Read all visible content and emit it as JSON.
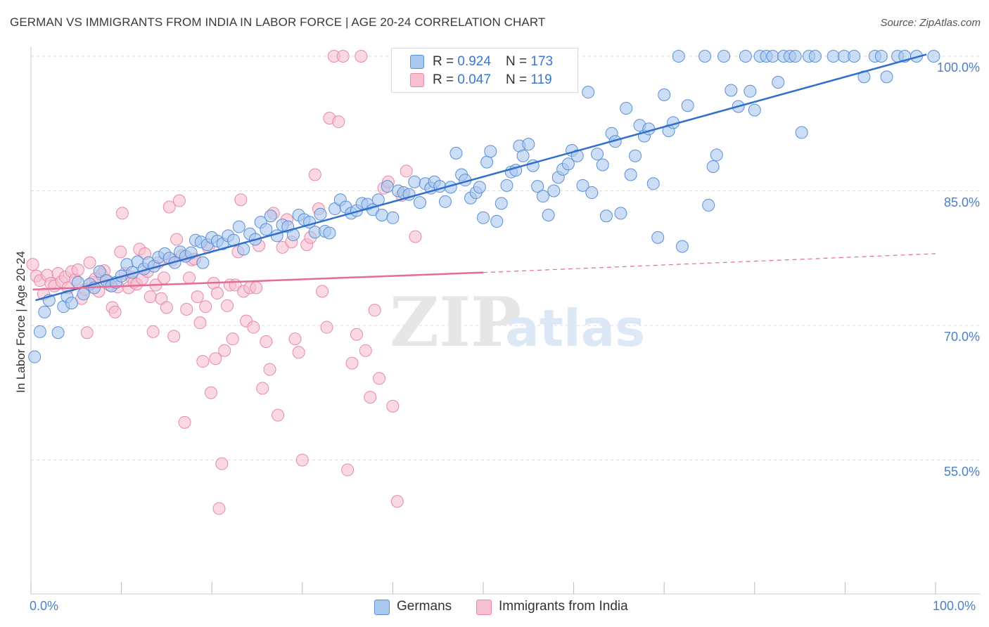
{
  "title": "GERMAN VS IMMIGRANTS FROM INDIA IN LABOR FORCE | AGE 20-24 CORRELATION CHART",
  "source": "Source: ZipAtlas.com",
  "watermark": {
    "zip": "ZIP",
    "atlas": "atlas"
  },
  "colors": {
    "blue_fill": "#a9c8f0",
    "blue_stroke": "#5b8fd6",
    "blue_line": "#2f6fce",
    "pink_fill": "#f7bfd0",
    "pink_stroke": "#e58aa8",
    "pink_line": "#e46c97",
    "axis_text": "#4a7fcb",
    "grid": "#dddddd"
  },
  "legend": {
    "german": {
      "r_label": "R = ",
      "r_value": "0.924",
      "n_label": "N = ",
      "n_value": "173"
    },
    "india": {
      "r_label": "R = ",
      "r_value": "0.047",
      "n_label": "N = ",
      "n_value": "119"
    }
  },
  "bottom_legend": {
    "german": "Germans",
    "india": "Immigrants from India"
  },
  "chart_data": {
    "type": "scatter",
    "title": "GERMAN VS IMMIGRANTS FROM INDIA IN LABOR FORCE | AGE 20-24 CORRELATION CHART",
    "xlabel": "",
    "ylabel": "In Labor Force | Age 20-24",
    "xlim": [
      0,
      100
    ],
    "ylim": [
      40,
      102
    ],
    "x_tick_labels": [
      "0.0%",
      "100.0%"
    ],
    "y_ticks": [
      55,
      70,
      85,
      100
    ],
    "y_tick_labels": [
      "55.0%",
      "70.0%",
      "85.0%",
      "100.0%"
    ],
    "grid": true,
    "legend_placement": "top-center",
    "series": [
      {
        "name": "Germans",
        "R": 0.924,
        "N": 173,
        "trend": {
          "x": [
            0.5,
            99
          ],
          "y": [
            72.8,
            100.2
          ],
          "style": "solid"
        },
        "points": [
          [
            0.4,
            66.5
          ],
          [
            1.0,
            69.3
          ],
          [
            1.5,
            71.5
          ],
          [
            2.0,
            72.8
          ],
          [
            3.0,
            69.2
          ],
          [
            3.6,
            72.1
          ],
          [
            4.0,
            73.2
          ],
          [
            4.5,
            72.5
          ],
          [
            5.2,
            74.8
          ],
          [
            5.8,
            73.5
          ],
          [
            6.5,
            74.6
          ],
          [
            7.0,
            74.2
          ],
          [
            7.6,
            76.0
          ],
          [
            8.3,
            75.0
          ],
          [
            8.9,
            74.4
          ],
          [
            9.4,
            74.8
          ],
          [
            10.0,
            75.5
          ],
          [
            10.6,
            76.8
          ],
          [
            11.2,
            75.9
          ],
          [
            11.8,
            77.1
          ],
          [
            12.5,
            76.3
          ],
          [
            13.0,
            77.0
          ],
          [
            13.6,
            76.6
          ],
          [
            14.1,
            77.6
          ],
          [
            14.8,
            78.0
          ],
          [
            15.3,
            77.5
          ],
          [
            15.9,
            77.0
          ],
          [
            16.5,
            78.2
          ],
          [
            17.1,
            77.7
          ],
          [
            17.7,
            78.1
          ],
          [
            18.2,
            79.5
          ],
          [
            18.8,
            79.3
          ],
          [
            19.0,
            77.0
          ],
          [
            19.5,
            79.0
          ],
          [
            20.0,
            79.8
          ],
          [
            20.6,
            79.4
          ],
          [
            21.2,
            79.1
          ],
          [
            21.8,
            80.0
          ],
          [
            22.4,
            79.5
          ],
          [
            23.0,
            81.0
          ],
          [
            23.5,
            78.5
          ],
          [
            24.2,
            80.2
          ],
          [
            24.8,
            79.6
          ],
          [
            25.4,
            81.5
          ],
          [
            26.0,
            80.7
          ],
          [
            26.5,
            82.2
          ],
          [
            27.2,
            80.0
          ],
          [
            27.8,
            81.2
          ],
          [
            28.4,
            81.0
          ],
          [
            29.0,
            80.1
          ],
          [
            29.6,
            82.3
          ],
          [
            30.2,
            81.8
          ],
          [
            30.8,
            81.5
          ],
          [
            31.4,
            80.4
          ],
          [
            32.0,
            82.4
          ],
          [
            32.5,
            80.5
          ],
          [
            33.0,
            80.3
          ],
          [
            33.6,
            83.0
          ],
          [
            34.2,
            84.0
          ],
          [
            34.8,
            83.2
          ],
          [
            35.4,
            82.5
          ],
          [
            36.0,
            82.8
          ],
          [
            36.6,
            83.6
          ],
          [
            37.2,
            83.5
          ],
          [
            37.8,
            82.9
          ],
          [
            38.4,
            84.0
          ],
          [
            38.8,
            82.3
          ],
          [
            39.4,
            85.5
          ],
          [
            40.0,
            82.0
          ],
          [
            40.6,
            85.0
          ],
          [
            41.2,
            84.8
          ],
          [
            41.8,
            84.6
          ],
          [
            42.4,
            86.0
          ],
          [
            43.0,
            83.7
          ],
          [
            43.6,
            85.8
          ],
          [
            44.2,
            85.3
          ],
          [
            44.6,
            86.0
          ],
          [
            45.2,
            85.5
          ],
          [
            45.8,
            83.8
          ],
          [
            46.4,
            85.4
          ],
          [
            47.0,
            89.2
          ],
          [
            47.6,
            86.8
          ],
          [
            48.0,
            86.2
          ],
          [
            48.6,
            84.2
          ],
          [
            49.2,
            84.8
          ],
          [
            49.6,
            85.4
          ],
          [
            50.0,
            82.0
          ],
          [
            50.4,
            88.2
          ],
          [
            50.8,
            89.4
          ],
          [
            51.5,
            81.6
          ],
          [
            52.0,
            83.6
          ],
          [
            52.6,
            85.6
          ],
          [
            53.1,
            87.1
          ],
          [
            53.6,
            87.3
          ],
          [
            54.0,
            90.0
          ],
          [
            54.4,
            88.9
          ],
          [
            55.0,
            90.2
          ],
          [
            55.5,
            87.8
          ],
          [
            56.0,
            85.5
          ],
          [
            56.6,
            84.4
          ],
          [
            57.2,
            82.3
          ],
          [
            57.8,
            85.0
          ],
          [
            58.3,
            86.5
          ],
          [
            58.8,
            87.4
          ],
          [
            59.4,
            88.0
          ],
          [
            59.8,
            89.5
          ],
          [
            60.4,
            88.9
          ],
          [
            61.0,
            85.6
          ],
          [
            61.6,
            96.0
          ],
          [
            62.0,
            84.8
          ],
          [
            62.6,
            89.1
          ],
          [
            63.2,
            87.9
          ],
          [
            63.6,
            82.2
          ],
          [
            64.2,
            91.4
          ],
          [
            64.6,
            90.5
          ],
          [
            65.2,
            82.5
          ],
          [
            65.8,
            94.2
          ],
          [
            66.3,
            86.8
          ],
          [
            66.8,
            88.9
          ],
          [
            67.3,
            92.3
          ],
          [
            67.8,
            91.1
          ],
          [
            68.3,
            91.9
          ],
          [
            68.8,
            85.8
          ],
          [
            69.3,
            79.8
          ],
          [
            70.0,
            95.7
          ],
          [
            70.5,
            91.7
          ],
          [
            71.0,
            92.6
          ],
          [
            71.6,
            100.0
          ],
          [
            72.0,
            78.8
          ],
          [
            72.6,
            94.5
          ],
          [
            74.5,
            100.0
          ],
          [
            74.9,
            83.4
          ],
          [
            75.4,
            87.7
          ],
          [
            75.8,
            89.0
          ],
          [
            76.6,
            100.0
          ],
          [
            77.4,
            96.2
          ],
          [
            78.2,
            94.4
          ],
          [
            79.0,
            100.0
          ],
          [
            79.5,
            96.1
          ],
          [
            80.0,
            94.0
          ],
          [
            80.6,
            100.0
          ],
          [
            81.3,
            100.0
          ],
          [
            82.0,
            100.0
          ],
          [
            82.6,
            97.1
          ],
          [
            83.2,
            100.0
          ],
          [
            83.9,
            100.0
          ],
          [
            84.5,
            100.0
          ],
          [
            85.2,
            91.5
          ],
          [
            86.0,
            100.0
          ],
          [
            86.7,
            100.0
          ],
          [
            88.7,
            100.0
          ],
          [
            89.9,
            100.0
          ],
          [
            91.0,
            100.0
          ],
          [
            92.1,
            97.7
          ],
          [
            93.3,
            100.0
          ],
          [
            94.0,
            100.0
          ],
          [
            94.6,
            97.7
          ],
          [
            95.8,
            100.0
          ],
          [
            96.6,
            100.0
          ],
          [
            97.9,
            100.0
          ],
          [
            99.8,
            100.0
          ]
        ]
      },
      {
        "name": "Immigrants from India",
        "R": 0.047,
        "N": 119,
        "trend": {
          "x": [
            0.2,
            50
          ],
          "y": [
            74.0,
            75.9
          ],
          "style": "solid",
          "extension": {
            "x": [
              50,
              100
            ],
            "y": [
              75.9,
              78.0
            ],
            "style": "dashed"
          }
        },
        "points": [
          [
            0.2,
            76.8
          ],
          [
            0.6,
            75.5
          ],
          [
            1.0,
            75.0
          ],
          [
            1.4,
            73.5
          ],
          [
            1.8,
            75.6
          ],
          [
            2.2,
            74.7
          ],
          [
            2.6,
            74.4
          ],
          [
            3.0,
            75.8
          ],
          [
            3.4,
            74.9
          ],
          [
            3.8,
            75.4
          ],
          [
            4.1,
            74.2
          ],
          [
            4.5,
            76.0
          ],
          [
            4.9,
            75.1
          ],
          [
            5.2,
            76.2
          ],
          [
            5.6,
            73.0
          ],
          [
            6.0,
            74.0
          ],
          [
            6.2,
            69.2
          ],
          [
            6.5,
            77.0
          ],
          [
            6.8,
            74.8
          ],
          [
            7.1,
            75.2
          ],
          [
            7.5,
            73.8
          ],
          [
            7.8,
            75.7
          ],
          [
            8.1,
            76.1
          ],
          [
            8.4,
            75.0
          ],
          [
            8.7,
            74.5
          ],
          [
            9.0,
            72.0
          ],
          [
            9.3,
            71.5
          ],
          [
            9.6,
            74.3
          ],
          [
            9.9,
            78.2
          ],
          [
            10.1,
            82.5
          ],
          [
            10.4,
            75.8
          ],
          [
            10.8,
            74.2
          ],
          [
            11.1,
            75.4
          ],
          [
            11.4,
            74.8
          ],
          [
            11.7,
            74.6
          ],
          [
            12.0,
            78.5
          ],
          [
            12.3,
            75.2
          ],
          [
            12.6,
            78.0
          ],
          [
            12.9,
            76.0
          ],
          [
            13.2,
            73.2
          ],
          [
            13.5,
            69.3
          ],
          [
            13.8,
            74.5
          ],
          [
            14.1,
            77.0
          ],
          [
            14.4,
            73.0
          ],
          [
            14.7,
            75.3
          ],
          [
            15.0,
            72.0
          ],
          [
            15.3,
            83.2
          ],
          [
            15.6,
            77.3
          ],
          [
            15.8,
            68.8
          ],
          [
            16.1,
            79.6
          ],
          [
            16.4,
            83.9
          ],
          [
            16.7,
            77.8
          ],
          [
            17.0,
            59.2
          ],
          [
            17.2,
            71.8
          ],
          [
            17.5,
            75.3
          ],
          [
            17.8,
            77.3
          ],
          [
            18.1,
            77.4
          ],
          [
            18.4,
            73.2
          ],
          [
            18.7,
            70.3
          ],
          [
            19.0,
            66.0
          ],
          [
            19.3,
            72.1
          ],
          [
            19.6,
            78.7
          ],
          [
            19.9,
            62.5
          ],
          [
            20.2,
            74.7
          ],
          [
            20.4,
            66.3
          ],
          [
            20.6,
            73.6
          ],
          [
            20.8,
            49.6
          ],
          [
            21.1,
            54.6
          ],
          [
            21.4,
            67.2
          ],
          [
            21.7,
            72.2
          ],
          [
            22.0,
            74.5
          ],
          [
            22.3,
            68.5
          ],
          [
            22.6,
            74.5
          ],
          [
            22.9,
            78.2
          ],
          [
            23.2,
            84.0
          ],
          [
            23.5,
            73.8
          ],
          [
            23.8,
            70.5
          ],
          [
            24.2,
            74.2
          ],
          [
            24.6,
            69.8
          ],
          [
            24.9,
            74.2
          ],
          [
            25.2,
            78.9
          ],
          [
            25.6,
            63.0
          ],
          [
            26.0,
            68.2
          ],
          [
            26.4,
            65.1
          ],
          [
            26.8,
            82.5
          ],
          [
            27.3,
            60.0
          ],
          [
            27.8,
            78.7
          ],
          [
            28.3,
            81.8
          ],
          [
            28.8,
            79.3
          ],
          [
            29.2,
            68.5
          ],
          [
            29.6,
            67.0
          ],
          [
            30.0,
            55.0
          ],
          [
            30.5,
            79.0
          ],
          [
            30.9,
            79.8
          ],
          [
            31.4,
            86.8
          ],
          [
            31.8,
            83.0
          ],
          [
            32.2,
            73.8
          ],
          [
            32.7,
            69.8
          ],
          [
            33.0,
            93.1
          ],
          [
            33.5,
            100.0
          ],
          [
            34.0,
            92.7
          ],
          [
            34.5,
            100.0
          ],
          [
            35.0,
            53.9
          ],
          [
            35.5,
            65.8
          ],
          [
            36.0,
            69.0
          ],
          [
            36.5,
            100.0
          ],
          [
            37.0,
            67.2
          ],
          [
            37.5,
            62.0
          ],
          [
            38.0,
            71.7
          ],
          [
            38.5,
            64.1
          ],
          [
            39.0,
            85.3
          ],
          [
            39.5,
            86.0
          ],
          [
            40.0,
            61.0
          ],
          [
            40.5,
            50.4
          ],
          [
            41.0,
            84.5
          ],
          [
            41.5,
            87.2
          ],
          [
            42.0,
            100.0
          ],
          [
            42.5,
            79.9
          ]
        ]
      }
    ]
  }
}
